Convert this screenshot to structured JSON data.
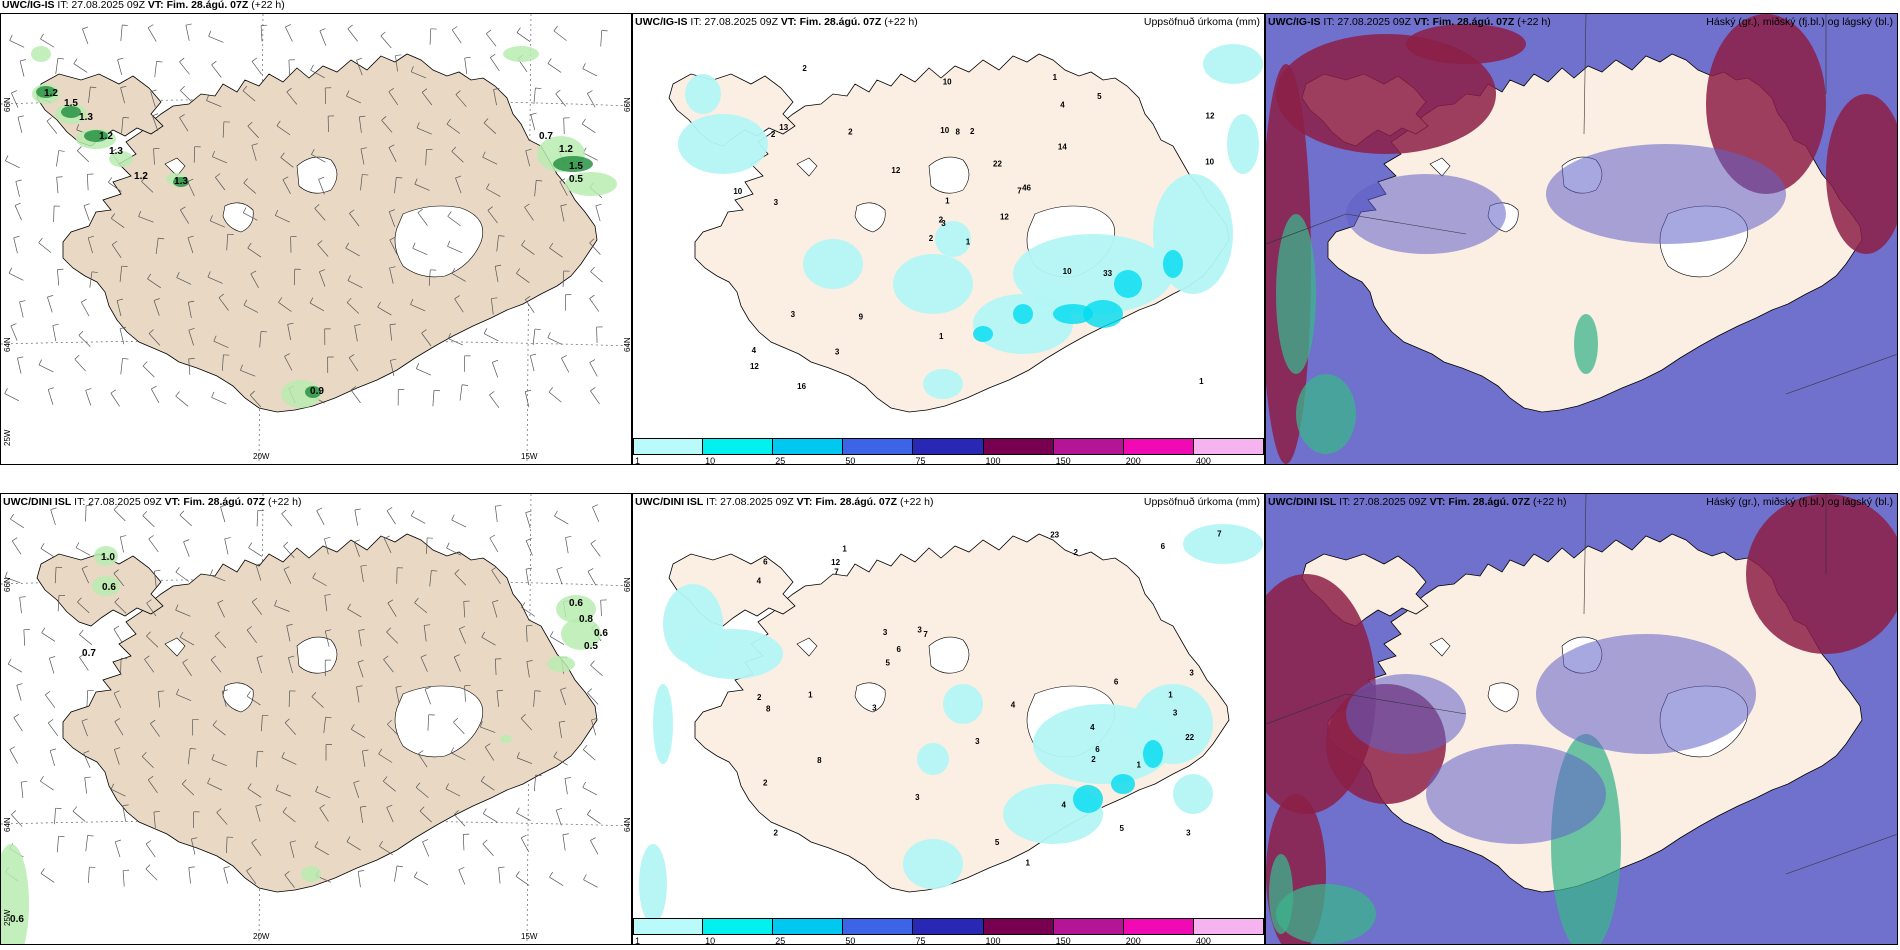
{
  "panels": [
    {
      "id": "p1",
      "title_prefix": "UWC/IG-IS",
      "title_it": " IT: 27.08.2025 09Z ",
      "title_vt": "VT: Fim. 28.ágú. 07Z",
      "title_rest": " (+22 h)",
      "right": "",
      "type": "wind"
    },
    {
      "id": "p2",
      "title_prefix": "UWC/IG-IS",
      "title_it": " IT: 27.08.2025 09Z ",
      "title_vt": "VT: Fim. 28.ágú. 07Z",
      "title_rest": " (+22 h)",
      "right": "Uppsöfnuð úrkoma (mm)",
      "type": "precip"
    },
    {
      "id": "p3",
      "title_prefix": "UWC/IG-IS",
      "title_it": " IT: 27.08.2025 09Z ",
      "title_vt": "VT: Fim. 28.ágú. 07Z",
      "title_rest": " (+22 h)",
      "right": "Háský (gr.), miðský (fj.bl.) og lágský (bl.)",
      "type": "cloud"
    },
    {
      "id": "p4",
      "title_prefix": "UWC/DINI ISL",
      "title_it": " IT: 27.08.2025 09Z ",
      "title_vt": "VT: Fim. 28.ágú. 07Z",
      "title_rest": " (+22 h)",
      "right": "",
      "type": "wind"
    },
    {
      "id": "p5",
      "title_prefix": "UWC/DINI ISL",
      "title_it": " IT: 27.08.2025 09Z ",
      "title_vt": "VT: Fim. 28.ágú. 07Z",
      "title_rest": " (+22 h)",
      "right": "Uppsöfnuð úrkoma (mm)",
      "type": "precip"
    },
    {
      "id": "p6",
      "title_prefix": "UWC/DINI ISL",
      "title_it": " IT: 27.08.2025 09Z ",
      "title_vt": "VT: Fim. 28.ágú. 07Z",
      "title_rest": " (+22 h)",
      "right": "Háský (gr.), miðský (fj.bl.) og lágský (bl.)",
      "type": "cloud"
    }
  ],
  "axis_labels": {
    "lon1": "20W",
    "lon2": "15W",
    "lat1": "66N",
    "lat2": "64N",
    "lon3": "25W"
  },
  "legend": {
    "ticks": [
      "1",
      "10",
      "25",
      "50",
      "75",
      "100",
      "150",
      "200",
      "400"
    ],
    "colors": [
      "#b9fbfb",
      "#00f0f0",
      "#00c8f0",
      "#3c64e6",
      "#2828b4",
      "#780050",
      "#b41496",
      "#f00ab4",
      "#f5b4f0"
    ]
  },
  "wind_labels_top": [
    "1.2",
    "1.5",
    "1.3",
    "1.2",
    "1.3",
    "1.2",
    "1.3",
    "0.7",
    "1.2",
    "1.5",
    "0.5",
    "0.9"
  ],
  "wind_labels_bottom": [
    "1.0",
    "0.6",
    "0.7",
    "0.6",
    "0.8",
    "0.6",
    "0.5",
    "0.6"
  ],
  "precip_labels_top": [
    "1",
    "2",
    "3",
    "4",
    "7",
    "9",
    "1",
    "2",
    "4",
    "12",
    "2",
    "1",
    "3",
    "12",
    "2",
    "14",
    "16",
    "10",
    "22",
    "3",
    "12",
    "12",
    "3",
    "8",
    "46",
    "33",
    "13",
    "10",
    "10",
    "10",
    "10",
    "2",
    "1",
    "1",
    "2",
    "5"
  ],
  "precip_labels_bottom": [
    "4",
    "3",
    "2",
    "1",
    "7",
    "5",
    "2",
    "2",
    "3",
    "1",
    "4",
    "2",
    "6",
    "3",
    "3",
    "3",
    "3",
    "4",
    "3",
    "8",
    "7",
    "6",
    "5",
    "22",
    "23",
    "12",
    "6",
    "8",
    "7",
    "6",
    "5",
    "4",
    "6",
    "3",
    "1",
    "1",
    "2",
    "1"
  ],
  "colors": {
    "land": "#e8d8c4",
    "land_light": "#fbeee2",
    "precip_light": "#b4f5f5",
    "precip_mid": "#00dcf0",
    "green_light": "#b8ecb0",
    "green_dark": "#1e8c3c",
    "cloud_high": "#8c1e46",
    "cloud_mid": "#6060c8",
    "cloud_low": "#3cb48c"
  }
}
